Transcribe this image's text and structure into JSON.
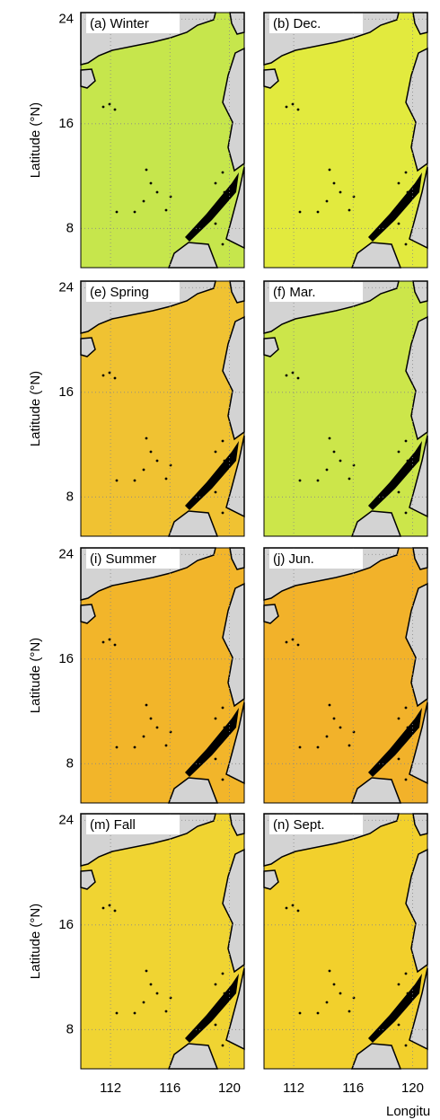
{
  "rows": [
    {
      "ylabel": "Latitude (°N)",
      "yticks": [
        24,
        16,
        8
      ],
      "panels": [
        {
          "label": "(a) Winter",
          "color": "#c6e64c"
        },
        {
          "label": "(b) Dec.",
          "color": "#e2ea3e"
        }
      ]
    },
    {
      "ylabel": "Latitude (°N)",
      "yticks": [
        24,
        16,
        8
      ],
      "panels": [
        {
          "label": "(e) Spring",
          "color": "#f0c232"
        },
        {
          "label": "(f) Mar.",
          "color": "#cce64a"
        }
      ]
    },
    {
      "ylabel": "Latitude (°N)",
      "yticks": [
        24,
        16,
        8
      ],
      "panels": [
        {
          "label": "(i) Summer",
          "color": "#f2b52a"
        },
        {
          "label": "(j) Jun.",
          "color": "#f2b22a"
        }
      ]
    },
    {
      "ylabel": "Latitude (°N)",
      "yticks": [
        24,
        16,
        8
      ],
      "panels": [
        {
          "label": "(m) Fall",
          "color": "#f0d432"
        },
        {
          "label": "(n) Sept.",
          "color": "#f2d02c"
        }
      ]
    }
  ],
  "columns": [
    {
      "xticks": [
        112,
        116,
        120
      ]
    },
    {
      "xticks": [
        112,
        116,
        120
      ]
    }
  ],
  "xlim": [
    110,
    121
  ],
  "ylim": [
    5,
    24.5
  ],
  "xlabel": "Longitu"
}
